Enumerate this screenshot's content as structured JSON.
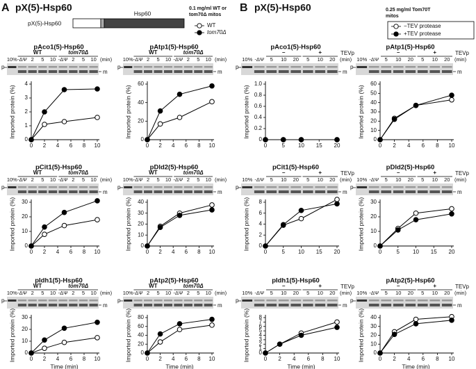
{
  "header": {
    "a": {
      "letter": "A",
      "title": "pX(5)-Hsp60",
      "construct": "pX(5)-Hsp60",
      "domain": "Hsp60",
      "note": [
        "0.1 mg/ml WT or",
        "tom70Δ mitos"
      ],
      "legend": [
        {
          "label": "WT",
          "marker": "open"
        },
        {
          "label": "tom70Δ",
          "marker": "filled"
        }
      ]
    },
    "b": {
      "letter": "B",
      "title": "pX(5)-Hsp60",
      "note": [
        "0.25 mg/ml Tom70T",
        "mitos"
      ],
      "legend": [
        {
          "label": "−TEV protease",
          "marker": "open"
        },
        {
          "label": "+TEV protease",
          "marker": "filled"
        }
      ]
    }
  },
  "chart_data": [
    {
      "type": "line",
      "title": "pAco1(5)-Hsp60",
      "ylabel": "Imported protein (%)",
      "x": [
        0,
        2,
        5,
        10
      ],
      "series": [
        {
          "marker": "open",
          "values": [
            0,
            1.1,
            1.3,
            1.6
          ]
        },
        {
          "marker": "filled",
          "values": [
            0,
            2,
            3.6,
            3.65
          ]
        }
      ],
      "xlim": [
        0,
        10
      ],
      "xticks": [
        0,
        2,
        4,
        6,
        8,
        10
      ],
      "ylim": [
        0,
        4
      ],
      "yticks": [
        0,
        1,
        2,
        3,
        4
      ],
      "gel": {
        "groups": [
          "WT",
          "tom70Δ"
        ],
        "lanes": [
          "10%",
          "-ΔΨ",
          "2",
          "5",
          "10",
          "-ΔΨ",
          "2",
          "5",
          "10"
        ],
        "unit": "(min)",
        "p": "p",
        "m": "m"
      }
    },
    {
      "type": "line",
      "title": "pAtp1(5)-Hsp60",
      "ylabel": "Imported protein (%)",
      "x": [
        0,
        2,
        5,
        10
      ],
      "series": [
        {
          "marker": "open",
          "values": [
            0,
            17,
            24,
            41
          ]
        },
        {
          "marker": "filled",
          "values": [
            0,
            31,
            49,
            58
          ]
        }
      ],
      "xlim": [
        0,
        10
      ],
      "xticks": [
        0,
        2,
        4,
        6,
        8,
        10
      ],
      "ylim": [
        0,
        60
      ],
      "yticks": [
        0,
        20,
        40,
        60
      ],
      "gel": {
        "groups": [
          "WT",
          "tom70Δ"
        ],
        "lanes": [
          "10%",
          "-ΔΨ",
          "2",
          "5",
          "10",
          "-ΔΨ",
          "2",
          "5",
          "10"
        ],
        "unit": "(min)",
        "p": "p",
        "m": "m"
      }
    },
    {
      "type": "line",
      "title": "pCit1(5)-Hsp60",
      "ylabel": "Imported protein (%)",
      "x": [
        0,
        2,
        5,
        10
      ],
      "series": [
        {
          "marker": "open",
          "values": [
            0,
            8,
            14,
            18
          ]
        },
        {
          "marker": "filled",
          "values": [
            0,
            13,
            23,
            31
          ]
        }
      ],
      "xlim": [
        0,
        10
      ],
      "xticks": [
        0,
        2,
        4,
        6,
        8,
        10
      ],
      "ylim": [
        0,
        30
      ],
      "yticks": [
        0,
        10,
        20,
        30
      ],
      "gel": {
        "groups": [
          "WT",
          "tom70Δ"
        ],
        "lanes": [
          "10%",
          "-ΔΨ",
          "2",
          "5",
          "10",
          "-ΔΨ",
          "2",
          "5",
          "10"
        ],
        "unit": "(min)",
        "p": "p",
        "m": "m"
      }
    },
    {
      "type": "line",
      "title": "pDld2(5)-Hsp60",
      "ylabel": "Imported protein (%)",
      "x": [
        0,
        2,
        5,
        10
      ],
      "series": [
        {
          "marker": "open",
          "values": [
            0,
            18,
            30,
            37.5
          ]
        },
        {
          "marker": "filled",
          "values": [
            0,
            17,
            28,
            33
          ]
        }
      ],
      "xlim": [
        0,
        10
      ],
      "xticks": [
        0,
        2,
        4,
        6,
        8,
        10
      ],
      "ylim": [
        0,
        40
      ],
      "yticks": [
        0,
        10,
        20,
        30,
        40
      ],
      "gel": {
        "groups": [
          "WT",
          "tom70Δ"
        ],
        "lanes": [
          "10%",
          "-ΔΨ",
          "2",
          "5",
          "10",
          "-ΔΨ",
          "2",
          "5",
          "10"
        ],
        "unit": "(min)",
        "p": "p",
        "m": "m"
      }
    },
    {
      "type": "line",
      "title": "pIdh1(5)-Hsp60",
      "ylabel": "Imported protein (%)",
      "xlabel": "Time (min)",
      "x": [
        0,
        2,
        5,
        10
      ],
      "series": [
        {
          "marker": "open",
          "values": [
            0,
            4,
            9,
            13
          ]
        },
        {
          "marker": "filled",
          "values": [
            0,
            11,
            21,
            26
          ]
        }
      ],
      "xlim": [
        0,
        10
      ],
      "xticks": [
        0,
        2,
        4,
        6,
        8,
        10
      ],
      "ylim": [
        0,
        30
      ],
      "yticks": [
        0,
        10,
        20,
        30
      ],
      "gel": {
        "groups": [
          "WT",
          "tom70Δ"
        ],
        "lanes": [
          "10%",
          "-ΔΨ",
          "2",
          "5",
          "10",
          "-ΔΨ",
          "2",
          "5",
          "10"
        ],
        "unit": "(min)",
        "p": "p",
        "m": "m"
      }
    },
    {
      "type": "line",
      "title": "pAtp2(5)-Hsp60",
      "ylabel": "Imported protein (%)",
      "xlabel": "Time (min)",
      "x": [
        0,
        2,
        5,
        10
      ],
      "series": [
        {
          "marker": "open",
          "values": [
            0,
            25,
            53,
            63
          ]
        },
        {
          "marker": "filled",
          "values": [
            0,
            43,
            66,
            76
          ]
        }
      ],
      "xlim": [
        0,
        10
      ],
      "xticks": [
        0,
        2,
        4,
        6,
        8,
        10
      ],
      "ylim": [
        0,
        80
      ],
      "yticks": [
        0,
        20,
        40,
        60,
        80
      ],
      "gel": {
        "groups": [
          "WT",
          "tom70Δ"
        ],
        "lanes": [
          "10%",
          "-ΔΨ",
          "2",
          "5",
          "10",
          "-ΔΨ",
          "2",
          "5",
          "10"
        ],
        "unit": "(min)",
        "p": "p",
        "m": "m"
      }
    },
    {
      "type": "line",
      "title": "pAco1(5)-Hsp60",
      "ylabel": "Imported protein (%)",
      "x": [
        0,
        5,
        10,
        20
      ],
      "series": [
        {
          "marker": "open",
          "values": [
            0,
            0,
            0,
            0
          ]
        },
        {
          "marker": "filled",
          "values": [
            0,
            0,
            0,
            0
          ]
        }
      ],
      "xlim": [
        0,
        20
      ],
      "xticks": [
        0,
        5,
        10,
        15,
        20
      ],
      "ylim": [
        0,
        1
      ],
      "yticks": [
        0,
        0.2,
        0.4,
        0.6,
        0.8,
        {
          "value": 1,
          "label": "1.0"
        }
      ],
      "gel": {
        "groups": [
          "–",
          "+"
        ],
        "extra": "TEVp",
        "lanes": [
          "10%",
          "-ΔΨ",
          "5",
          "10",
          "20",
          "5",
          "10",
          "20"
        ],
        "unit": "(min)",
        "p": "p",
        "m": "m"
      }
    },
    {
      "type": "line",
      "title": "pAtp1(5)-Hsp60",
      "ylabel": "Imported protein (%)",
      "x": [
        0,
        2,
        5,
        10
      ],
      "series": [
        {
          "marker": "open",
          "values": [
            0,
            23,
            37,
            43
          ]
        },
        {
          "marker": "filled",
          "values": [
            0,
            22,
            37,
            48
          ]
        }
      ],
      "xlim": [
        0,
        10
      ],
      "xticks": [
        0,
        2,
        4,
        6,
        8,
        10
      ],
      "ylim": [
        0,
        60
      ],
      "yticks": [
        0,
        10,
        20,
        30,
        40,
        50,
        60
      ],
      "gel": {
        "groups": [
          "–",
          "+"
        ],
        "extra": "TEVp",
        "lanes": [
          "10%",
          "-ΔΨ",
          "5",
          "10",
          "20",
          "5",
          "10",
          "20"
        ],
        "unit": "(min)",
        "p": "p",
        "m": "m"
      }
    },
    {
      "type": "line",
      "title": "pCit1(5)-Hsp60",
      "ylabel": "Imported protein (%)",
      "x": [
        0,
        5,
        10,
        20
      ],
      "series": [
        {
          "marker": "open",
          "values": [
            0,
            3.8,
            5,
            8.5
          ]
        },
        {
          "marker": "filled",
          "values": [
            0,
            3.9,
            6.5,
            7.7
          ]
        }
      ],
      "xlim": [
        0,
        20
      ],
      "xticks": [
        0,
        5,
        10,
        15,
        20
      ],
      "ylim": [
        0,
        8
      ],
      "yticks": [
        0,
        2,
        4,
        6,
        8
      ],
      "gel": {
        "groups": [
          "–",
          "+"
        ],
        "extra": "TEVp",
        "lanes": [
          "10%",
          "-ΔΨ",
          "5",
          "10",
          "20",
          "5",
          "10",
          "20"
        ],
        "unit": "(min)",
        "p": "p",
        "m": "m"
      }
    },
    {
      "type": "line",
      "title": "pDld2(5)-Hsp60",
      "ylabel": "Imported protein (%)",
      "x": [
        0,
        5,
        10,
        20
      ],
      "series": [
        {
          "marker": "open",
          "values": [
            0,
            12,
            22.5,
            25.5
          ]
        },
        {
          "marker": "filled",
          "values": [
            0,
            11,
            18,
            22
          ]
        }
      ],
      "xlim": [
        0,
        20
      ],
      "xticks": [
        0,
        5,
        10,
        15,
        20
      ],
      "ylim": [
        0,
        30
      ],
      "yticks": [
        0,
        10,
        20,
        30
      ],
      "gel": {
        "groups": [
          "–",
          "+"
        ],
        "extra": "TEVp",
        "lanes": [
          "10%",
          "-ΔΨ",
          "5",
          "10",
          "20",
          "5",
          "10",
          "20"
        ],
        "unit": "(min)",
        "p": "p",
        "m": "m"
      }
    },
    {
      "type": "line",
      "title": "pIdh1(5)-Hsp60",
      "ylabel": "Imported protein (%)",
      "xlabel": "Time (min)",
      "x": [
        0,
        2,
        5,
        10
      ],
      "series": [
        {
          "marker": "open",
          "values": [
            0,
            2,
            4.5,
            7
          ]
        },
        {
          "marker": "filled",
          "values": [
            0,
            2,
            4,
            5.8
          ]
        }
      ],
      "xlim": [
        0,
        10
      ],
      "xticks": [
        0,
        2,
        4,
        6,
        8,
        10
      ],
      "ylim": [
        0,
        8
      ],
      "yticks": [
        0,
        1,
        2,
        3,
        4,
        5,
        6,
        7,
        8
      ],
      "gel": {
        "groups": [
          "–",
          "+"
        ],
        "extra": "TEVp",
        "lanes": [
          "10%",
          "-ΔΨ",
          "5",
          "10",
          "20",
          "5",
          "10",
          "20"
        ],
        "unit": "(min)",
        "p": "p",
        "m": "m"
      }
    },
    {
      "type": "line",
      "title": "pAtp2(5)-Hsp60",
      "ylabel": "Imported protein (%)",
      "xlabel": "Time (min)",
      "x": [
        0,
        2,
        5,
        10
      ],
      "series": [
        {
          "marker": "open",
          "values": [
            0,
            24,
            38,
            41
          ]
        },
        {
          "marker": "filled",
          "values": [
            0,
            21,
            33,
            37
          ]
        }
      ],
      "xlim": [
        0,
        10
      ],
      "xticks": [
        0,
        2,
        4,
        6,
        8,
        10
      ],
      "ylim": [
        0,
        40
      ],
      "yticks": [
        0,
        10,
        20,
        30,
        40
      ],
      "gel": {
        "groups": [
          "–",
          "+"
        ],
        "extra": "TEVp",
        "lanes": [
          "10%",
          "-ΔΨ",
          "5",
          "10",
          "20",
          "5",
          "10",
          "20"
        ],
        "unit": "(min)",
        "p": "p",
        "m": "m"
      }
    }
  ]
}
